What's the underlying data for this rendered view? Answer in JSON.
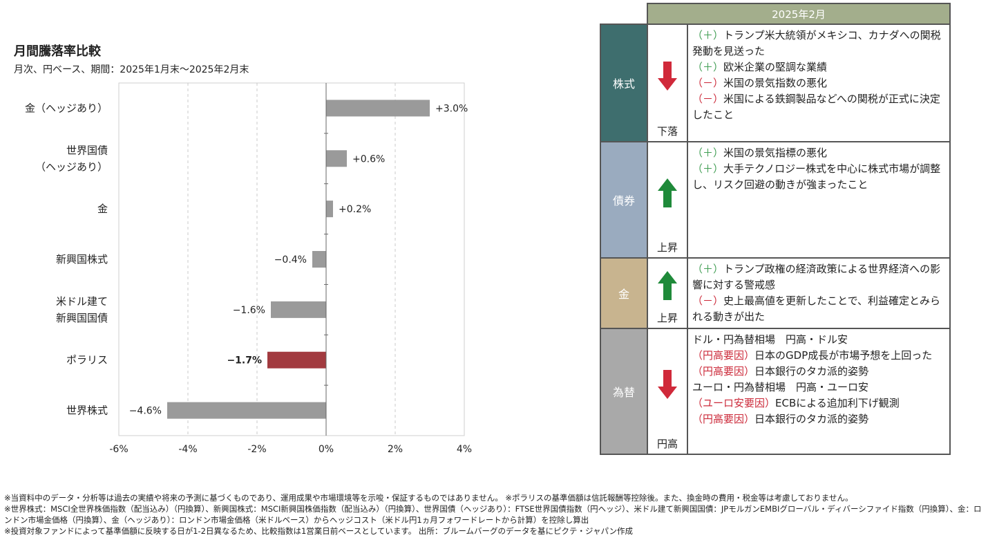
{
  "title": "月間騰落率比較",
  "subtitle": "月次、円ベース、期間：2025年1月末～2025年2月末",
  "chart_data": {
    "type": "bar",
    "orientation": "horizontal",
    "categories": [
      [
        "金（ヘッジあり）"
      ],
      [
        "世界国債",
        "（ヘッジあり）"
      ],
      [
        "金"
      ],
      [
        "新興国株式"
      ],
      [
        "米ドル建て",
        "新興国国債"
      ],
      [
        "ポラリス"
      ],
      [
        "世界株式"
      ]
    ],
    "values": [
      3.0,
      0.6,
      0.2,
      -0.4,
      -1.6,
      -1.7,
      -4.6
    ],
    "data_labels": [
      "+3.0%",
      "+0.6%",
      "+0.2%",
      "−0.4%",
      "−1.6%",
      "−1.7%",
      "−4.6%"
    ],
    "highlight_index": 5,
    "xlim": [
      -6,
      4
    ],
    "xticks": [
      -6,
      -4,
      -2,
      0,
      2,
      4
    ],
    "xtick_labels": [
      "-6%",
      "-4%",
      "-2%",
      "0%",
      "2%",
      "4%"
    ],
    "grid": "vertical dashed",
    "colors": {
      "bar": "#9a9a9a",
      "highlight": "#a23a3f",
      "highlight_label": "#c0202a"
    }
  },
  "events": {
    "header": "2025年2月",
    "rows": [
      {
        "category": "株式",
        "cat_color": "#3e6e6e",
        "direction": "down",
        "direction_label": "下落",
        "lines": [
          {
            "tag": "（＋）",
            "tag_type": "pos",
            "text": "トランプ米大統領がメキシコ、カナダへの関税発動を見送った"
          },
          {
            "tag": "（＋）",
            "tag_type": "pos",
            "text": "欧米企業の堅調な業績"
          },
          {
            "tag": "（－）",
            "tag_type": "neg",
            "text": "米国の景気指数の悪化"
          },
          {
            "tag": "（－）",
            "tag_type": "neg",
            "text": "米国による鉄鋼製品などへの関税が正式に決定したこと"
          }
        ]
      },
      {
        "category": "債券",
        "cat_color": "#9aabbf",
        "direction": "up",
        "direction_label": "上昇",
        "lines": [
          {
            "tag": "（＋）",
            "tag_type": "pos",
            "text": "米国の景気指標の悪化"
          },
          {
            "tag": "（＋）",
            "tag_type": "pos",
            "text": "大手テクノロジー株式を中心に株式市場が調整し、リスク回避の動きが強まったこと"
          }
        ]
      },
      {
        "category": "金",
        "cat_color": "#c8b48f",
        "direction": "up",
        "direction_label": "上昇",
        "lines": [
          {
            "tag": "（＋）",
            "tag_type": "pos",
            "text": "トランプ政権の経済政策による世界経済への影響に対する警戒感"
          },
          {
            "tag": "（－）",
            "tag_type": "neg",
            "text": "史上最高値を更新したことで、利益確定とみられる動きが出た"
          }
        ]
      },
      {
        "category": "為替",
        "cat_color": "#a9a9a9",
        "direction": "down",
        "direction_label": "円高",
        "lines": [
          {
            "tag": "",
            "tag_type": "none",
            "text": "ドル・円為替相場　円高・ドル安"
          },
          {
            "tag": "（円高要因）",
            "tag_type": "neg",
            "text": "日本のGDP成長が市場予想を上回った"
          },
          {
            "tag": "（円高要因）",
            "tag_type": "neg",
            "text": "日本銀行のタカ派的姿勢"
          },
          {
            "tag": "",
            "tag_type": "none",
            "text": "ユーロ・円為替相場　円高・ユーロ安"
          },
          {
            "tag": "（ユーロ安要因）",
            "tag_type": "neg",
            "text": "ECBによる追加利下げ観測"
          },
          {
            "tag": "（円高要因）",
            "tag_type": "neg",
            "text": "日本銀行のタカ派的姿勢"
          }
        ]
      }
    ],
    "colors": {
      "up_arrow": "#1f8a3a",
      "down_arrow": "#d0293a"
    }
  },
  "notes": [
    "※当資料中のデータ・分析等は過去の実績や将来の予測に基づくものであり、運用成果や市場環境等を示唆・保証するものではありません。 ※ポラリスの基準価額は信託報酬等控除後。また、換金時の費用・税金等は考慮しておりません。",
    "※世界株式：MSCI全世界株価指数（配当込み）（円換算）、新興国株式：MSCI新興国株価指数（配当込み）（円換算）、世界国債（ヘッジあり）：FTSE世界国債指数（円ヘッジ）、米ドル建て新興国国債：JPモルガンEMBIグローバル・ディバーシファイド指数（円換算）、金：ロンドン市場金価格（円換算）、金（ヘッジあり）：ロンドン市場金価格（米ドルベース）からヘッジコスト（米ドル円1ヵ月フォワードレートから計算）を控除し算出",
    "※投資対象ファンドによって基準価額に反映する日が1-2日異なるため、比較指数は1営業日前ベースとしています。 出所：ブルームバーグのデータを基にピクテ・ジャパン作成"
  ]
}
